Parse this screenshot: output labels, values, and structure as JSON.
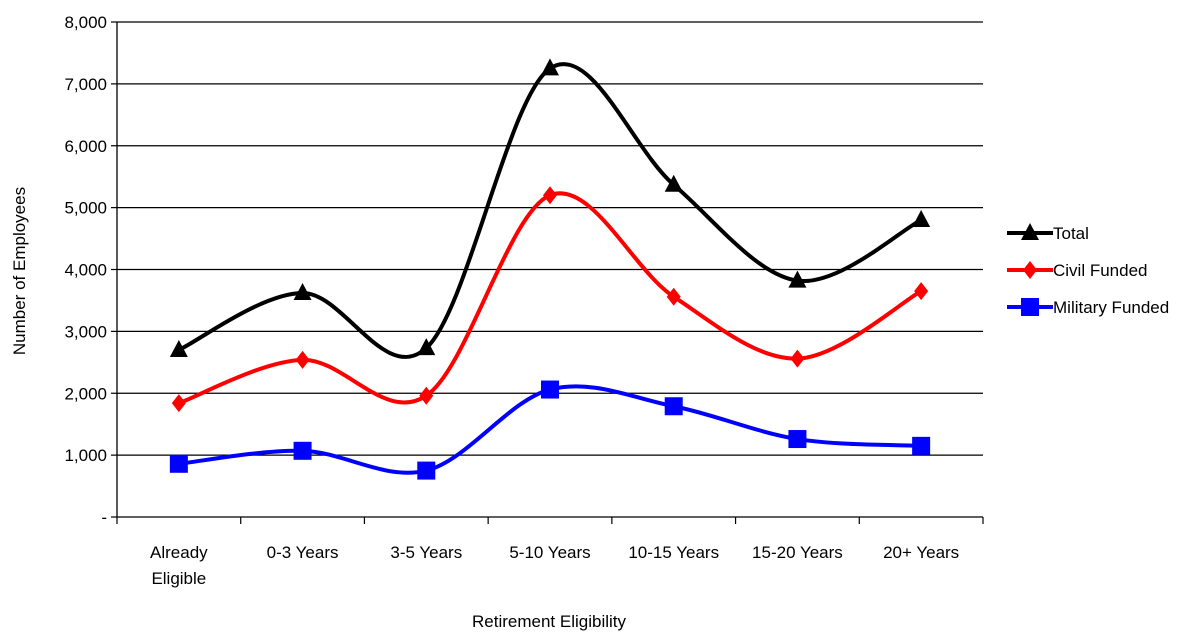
{
  "chart_data": {
    "type": "line",
    "title": "",
    "xlabel": "Retirement Eligibility",
    "ylabel": "Number of Employees",
    "categories": [
      "Already Eligible",
      "0-3 Years",
      "3-5 Years",
      "5-10 Years",
      "10-15 Years",
      "15-20 Years",
      "20+ Years"
    ],
    "y_tick_labels": [
      "-",
      "1,000",
      "2,000",
      "3,000",
      "4,000",
      "5,000",
      "6,000",
      "7,000",
      "8,000"
    ],
    "ylim": [
      0,
      8000
    ],
    "grid": true,
    "legend_position": "right",
    "series": [
      {
        "name": "Total",
        "values": [
          2700,
          3620,
          2730,
          7250,
          5370,
          3820,
          4800
        ],
        "color": "#000000",
        "marker": "triangle"
      },
      {
        "name": "Civil Funded",
        "values": [
          1840,
          2540,
          1960,
          5200,
          3560,
          2560,
          3650
        ],
        "color": "#ff0000",
        "marker": "diamond"
      },
      {
        "name": "Military Funded",
        "values": [
          860,
          1070,
          750,
          2060,
          1790,
          1260,
          1150
        ],
        "color": "#0000ff",
        "marker": "square"
      }
    ]
  }
}
